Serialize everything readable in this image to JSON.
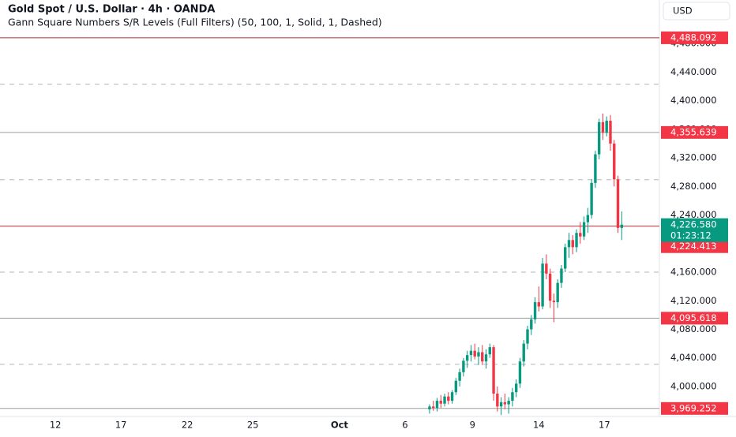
{
  "chart_data": {
    "type": "candlestick",
    "title": "Gold Spot / U.S. Dollar · 4h · OANDA",
    "subtitle": "Gann Square Numbers S/R Levels (Full Filters) (50, 100, 1, Solid, 1, Dashed)",
    "currency": "USD",
    "up_color": "#089981",
    "down_color": "#f23645",
    "xlim": [
      0,
      175
    ],
    "xticks": [
      {
        "value": 14.7,
        "label": "12"
      },
      {
        "value": 32.1,
        "label": "17"
      },
      {
        "value": 49.7,
        "label": "22"
      },
      {
        "value": 67.1,
        "label": "25"
      },
      {
        "value": 90.1,
        "label": "Oct"
      },
      {
        "value": 107.5,
        "label": "6"
      },
      {
        "value": 125.4,
        "label": "9"
      },
      {
        "value": 143,
        "label": "14"
      },
      {
        "value": 160.4,
        "label": "17"
      }
    ],
    "ylim": [
      3958,
      4541
    ],
    "yticks": [
      {
        "value": 4000,
        "label": "4,000.000"
      },
      {
        "value": 4040,
        "label": "4,040.000"
      },
      {
        "value": 4080,
        "label": "4,080.000"
      },
      {
        "value": 4120,
        "label": "4,120.000"
      },
      {
        "value": 4160,
        "label": "4,160.000"
      },
      {
        "value": 4200,
        "label": "4,200.000"
      },
      {
        "value": 4240,
        "label": "4,240.000"
      },
      {
        "value": 4280,
        "label": "4,280.000"
      },
      {
        "value": 4320,
        "label": "4,320.000"
      },
      {
        "value": 4360,
        "label": "4,360.000"
      },
      {
        "value": 4400,
        "label": "4,400.000"
      },
      {
        "value": 4440,
        "label": "4,440.000"
      },
      {
        "value": 4480,
        "label": "4,480.000"
      }
    ],
    "x": [
      114,
      115,
      116,
      117,
      118,
      119,
      120,
      121,
      122,
      123,
      124,
      125,
      126,
      127,
      128,
      129,
      130,
      131,
      132,
      133,
      134,
      135,
      136,
      137,
      138,
      139,
      140,
      141,
      142,
      143,
      144,
      145,
      146,
      147,
      148,
      149,
      150,
      151,
      152,
      153,
      154,
      155,
      156,
      157,
      158,
      159,
      160,
      161,
      162,
      163,
      164,
      165
    ],
    "open": [
      3968,
      3972,
      3970,
      3980,
      3976,
      3986,
      3980,
      3992,
      4008,
      4020,
      4036,
      4044,
      4050,
      4042,
      4048,
      4035,
      4045,
      4055,
      3990,
      3972,
      3978,
      3975,
      3980,
      3992,
      4004,
      4035,
      4060,
      4080,
      4094,
      4118,
      4112,
      4172,
      4158,
      4120,
      4118,
      4145,
      4165,
      4195,
      4205,
      4195,
      4215,
      4210,
      4230,
      4240,
      4285,
      4325,
      4370,
      4355,
      4372,
      4340,
      4290,
      4222
    ],
    "high": [
      3975,
      3980,
      3984,
      3988,
      3990,
      3992,
      3995,
      4012,
      4025,
      4040,
      4050,
      4058,
      4060,
      4055,
      4058,
      4052,
      4060,
      4058,
      4000,
      3985,
      3990,
      3985,
      3998,
      4010,
      4040,
      4065,
      4085,
      4100,
      4125,
      4140,
      4180,
      4185,
      4165,
      4130,
      4150,
      4170,
      4200,
      4215,
      4212,
      4220,
      4230,
      4238,
      4250,
      4290,
      4330,
      4375,
      4382,
      4378,
      4380,
      4345,
      4295,
      4245
    ],
    "low": [
      3962,
      3966,
      3965,
      3970,
      3972,
      3975,
      3976,
      3988,
      4000,
      4014,
      4026,
      4035,
      4038,
      4030,
      4030,
      4025,
      4040,
      3980,
      3965,
      3960,
      3968,
      3962,
      3972,
      3985,
      3998,
      4028,
      4052,
      4072,
      4088,
      4105,
      4108,
      4150,
      4110,
      4090,
      4110,
      4138,
      4160,
      4180,
      4185,
      4188,
      4200,
      4205,
      4215,
      4235,
      4278,
      4318,
      4345,
      4350,
      4330,
      4280,
      4215,
      4205
    ],
    "close": [
      3972,
      3970,
      3980,
      3976,
      3986,
      3980,
      3992,
      4008,
      4020,
      4036,
      4044,
      4050,
      4042,
      4048,
      4035,
      4045,
      4055,
      3990,
      3972,
      3978,
      3975,
      3980,
      3992,
      4004,
      4035,
      4060,
      4080,
      4094,
      4118,
      4112,
      4172,
      4158,
      4120,
      4118,
      4145,
      4165,
      4195,
      4205,
      4195,
      4215,
      4210,
      4230,
      4240,
      4285,
      4325,
      4370,
      4355,
      4372,
      4340,
      4290,
      4222,
      4226.58
    ],
    "levels": [
      {
        "value": 4488.092,
        "label": "4,488.092",
        "line_color": "#b22833",
        "tag_color": "#f23645"
      },
      {
        "value": 4355.639,
        "label": "4,355.639",
        "line_color": "#9e9e9e",
        "tag_color": "#f23645"
      },
      {
        "value": 4224.413,
        "label": "4,224.413",
        "line_color": "#b22833",
        "tag_color": "#f23645"
      },
      {
        "value": 4095.618,
        "label": "4,095.618",
        "line_color": "#9e9e9e",
        "tag_color": "#f23645"
      },
      {
        "value": 3969.252,
        "label": "3,969.252",
        "line_color": "#9e9e9e",
        "tag_color": "#f23645"
      }
    ],
    "dashed_levels": [
      4423,
      4289.5,
      4160,
      4031
    ],
    "last_price": {
      "value": 4226.58,
      "label": "4,226.580",
      "countdown": "01:23:12",
      "color": "#089981"
    }
  }
}
